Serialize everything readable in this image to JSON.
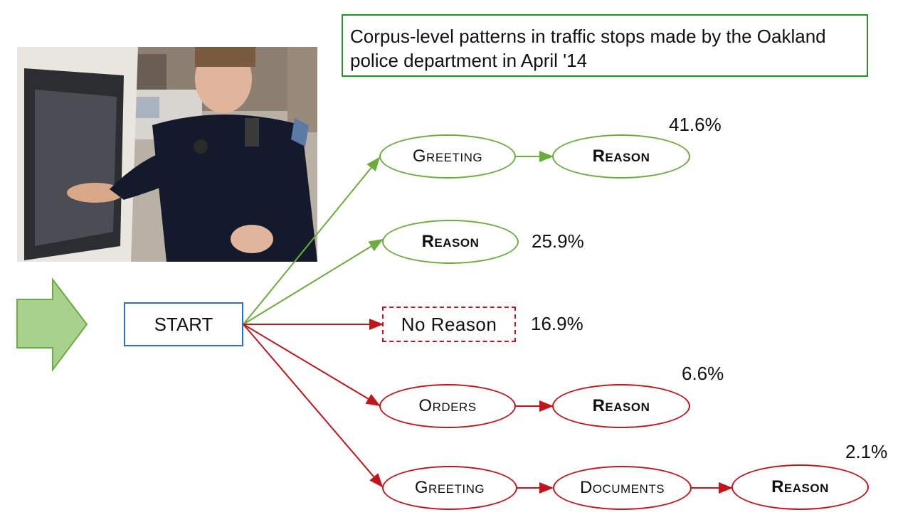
{
  "title": "Corpus-level patterns in traffic stops made by the Oakland police department in April '14",
  "start_label": "START",
  "colors": {
    "green": "#6aad3c",
    "red": "#c0151b",
    "blue": "#2f6fb3",
    "title_border": "#2e8b2e"
  },
  "paths": [
    {
      "nodes": [
        "Greeting",
        "Reason"
      ],
      "percent": "41.6%",
      "color": "green"
    },
    {
      "nodes": [
        "Reason"
      ],
      "percent": "25.9%",
      "color": "green"
    },
    {
      "nodes": [
        "No Reason"
      ],
      "percent": "16.9%",
      "color": "red"
    },
    {
      "nodes": [
        "Orders",
        "Reason"
      ],
      "percent": "6.6%",
      "color": "red"
    },
    {
      "nodes": [
        "Greeting",
        "Documents",
        "Reason"
      ],
      "percent": "2.1%",
      "color": "red"
    }
  ]
}
